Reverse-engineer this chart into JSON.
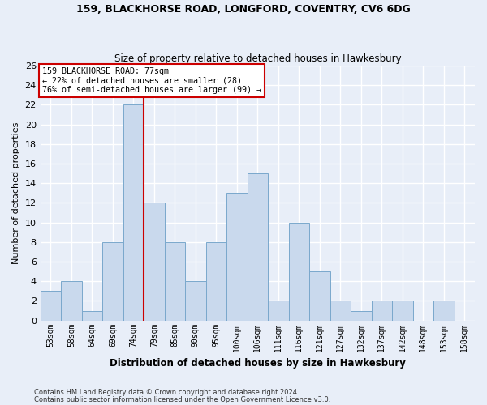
{
  "title1": "159, BLACKHORSE ROAD, LONGFORD, COVENTRY, CV6 6DG",
  "title2": "Size of property relative to detached houses in Hawkesbury",
  "xlabel": "Distribution of detached houses by size in Hawkesbury",
  "ylabel": "Number of detached properties",
  "bar_labels": [
    "53sqm",
    "58sqm",
    "64sqm",
    "69sqm",
    "74sqm",
    "79sqm",
    "85sqm",
    "90sqm",
    "95sqm",
    "100sqm",
    "106sqm",
    "111sqm",
    "116sqm",
    "121sqm",
    "127sqm",
    "132sqm",
    "137sqm",
    "142sqm",
    "148sqm",
    "153sqm",
    "158sqm"
  ],
  "bar_values": [
    3,
    4,
    1,
    8,
    22,
    12,
    8,
    4,
    8,
    13,
    15,
    2,
    10,
    5,
    2,
    1,
    2,
    2,
    0,
    2,
    0
  ],
  "bar_color": "#c9d9ed",
  "bar_edge_color": "#7aa8cc",
  "vline_x_index": 4,
  "vline_color": "#cc0000",
  "annotation_box_text": "159 BLACKHORSE ROAD: 77sqm\n← 22% of detached houses are smaller (28)\n76% of semi-detached houses are larger (99) →",
  "ylim": [
    0,
    26
  ],
  "yticks": [
    0,
    2,
    4,
    6,
    8,
    10,
    12,
    14,
    16,
    18,
    20,
    22,
    24,
    26
  ],
  "footnote1": "Contains HM Land Registry data © Crown copyright and database right 2024.",
  "footnote2": "Contains public sector information licensed under the Open Government Licence v3.0.",
  "bg_color": "#e8eef8",
  "grid_color": "#ffffff"
}
